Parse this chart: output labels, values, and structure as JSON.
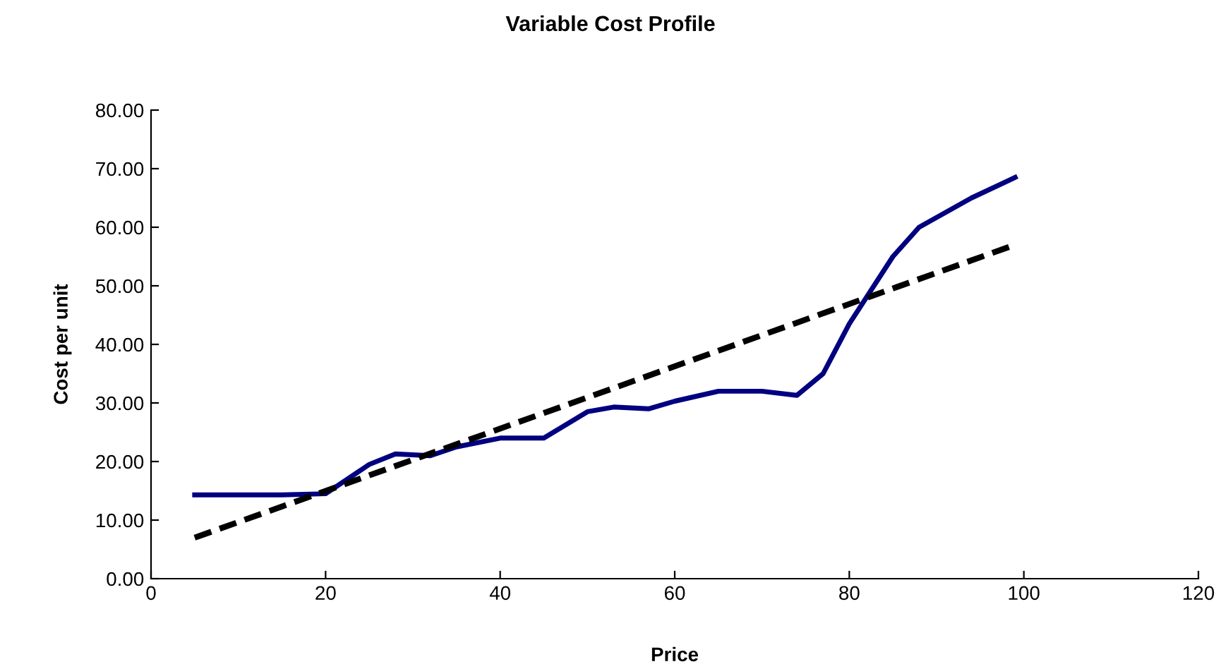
{
  "chart_data": {
    "type": "line",
    "title": "Variable Cost Profile",
    "xlabel": "Price",
    "ylabel": "Cost per unit",
    "xlim": [
      0,
      120
    ],
    "xticks": [
      0,
      20,
      40,
      60,
      80,
      100,
      120
    ],
    "ylim": [
      0,
      80
    ],
    "yticks": [
      {
        "value": 0,
        "label": "0.00"
      },
      {
        "value": 10,
        "label": "10.00"
      },
      {
        "value": 20,
        "label": "20.00"
      },
      {
        "value": 30,
        "label": "30.00"
      },
      {
        "value": 40,
        "label": "40.00"
      },
      {
        "value": 50,
        "label": "50.00"
      },
      {
        "value": 60,
        "label": "60.00"
      },
      {
        "value": 70,
        "label": "70.00"
      },
      {
        "value": 80,
        "label": "80.00"
      }
    ],
    "grid": false,
    "legend": false,
    "series": [
      {
        "color": "#000080",
        "line_style": "solid",
        "x": [
          5,
          10,
          15,
          20,
          25,
          28,
          32,
          35,
          40,
          45,
          50,
          53,
          57,
          60,
          65,
          70,
          74,
          77,
          80,
          85,
          88,
          94,
          99
        ],
        "values": [
          14.3,
          14.3,
          14.3,
          14.5,
          19.5,
          21.3,
          21,
          22.5,
          24,
          24,
          28.5,
          29.3,
          29,
          30.3,
          32,
          32,
          31.3,
          35,
          43.5,
          55,
          60,
          65,
          68.5
        ]
      },
      {
        "color": "#000000",
        "line_style": "dashed",
        "x": [
          5,
          99
        ],
        "values": [
          7,
          57
        ]
      }
    ]
  }
}
